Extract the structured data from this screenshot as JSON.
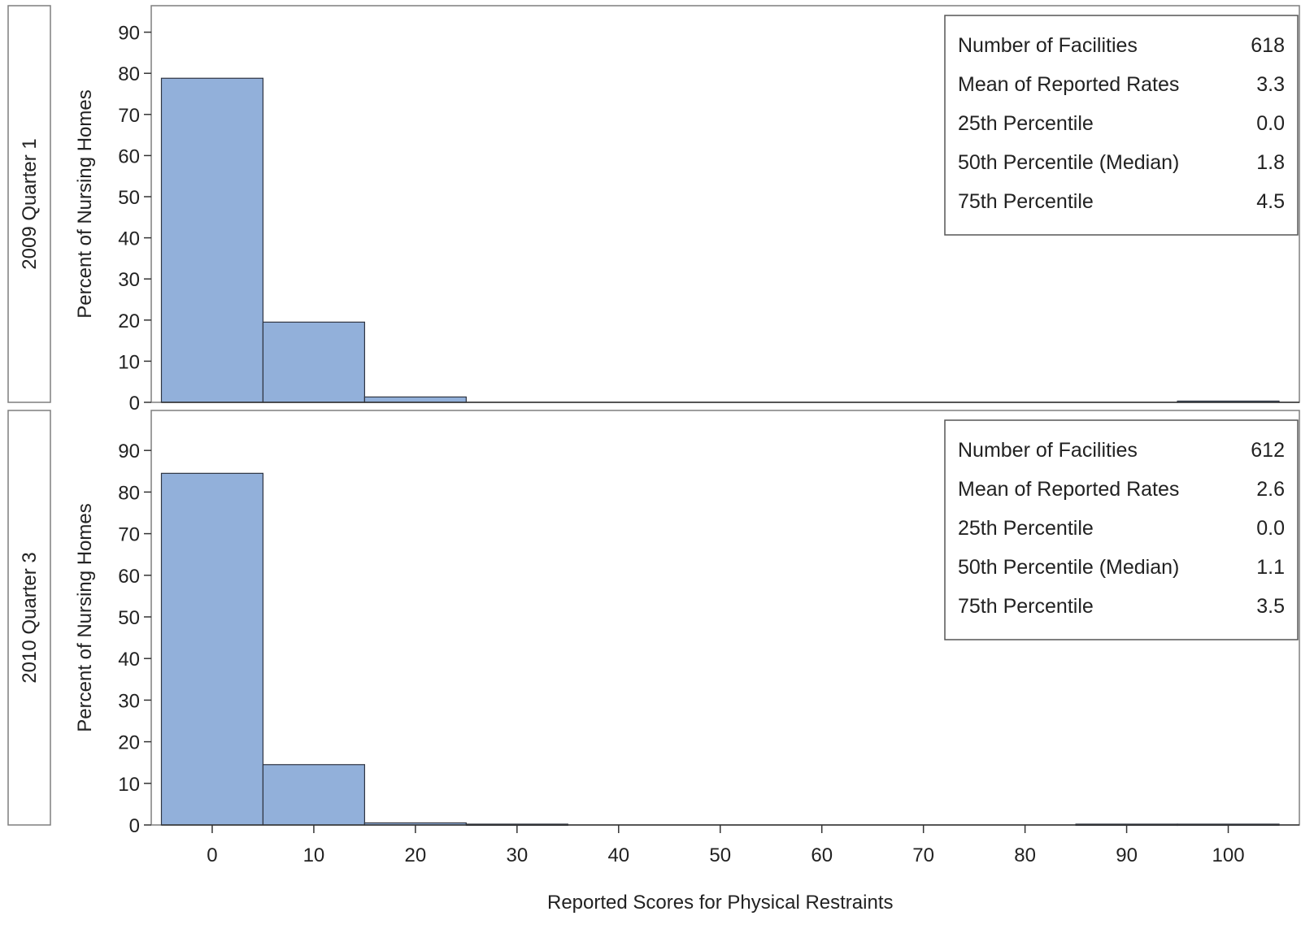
{
  "chart_data": [
    {
      "type": "bar",
      "panel_label": "2009 Quarter 1",
      "ylabel": "Percent of Nursing Homes",
      "xlabel": "",
      "ylim": [
        0,
        95
      ],
      "yticks": [
        0,
        10,
        20,
        30,
        40,
        50,
        60,
        70,
        80,
        90
      ],
      "bin_width": 10,
      "bins": [
        {
          "center": 0,
          "value": 78.8
        },
        {
          "center": 10,
          "value": 19.5
        },
        {
          "center": 20,
          "value": 1.3
        },
        {
          "center": 30,
          "value": 0
        },
        {
          "center": 40,
          "value": 0
        },
        {
          "center": 50,
          "value": 0
        },
        {
          "center": 60,
          "value": 0
        },
        {
          "center": 70,
          "value": 0
        },
        {
          "center": 80,
          "value": 0
        },
        {
          "center": 90,
          "value": 0
        },
        {
          "center": 100,
          "value": 0.3
        }
      ],
      "stats": [
        {
          "label": "Number of Facilities",
          "value": "618"
        },
        {
          "label": "Mean of Reported Rates",
          "value": "3.3"
        },
        {
          "label": "25th Percentile",
          "value": "0.0"
        },
        {
          "label": "50th Percentile (Median)",
          "value": "1.8"
        },
        {
          "label": "75th Percentile",
          "value": "4.5"
        }
      ],
      "legend_position": "top-right",
      "grid": false
    },
    {
      "type": "bar",
      "panel_label": "2010 Quarter 3",
      "ylabel": "Percent of Nursing Homes",
      "xlabel": "Reported Scores for Physical Restraints",
      "xticks": [
        0,
        10,
        20,
        30,
        40,
        50,
        60,
        70,
        80,
        90,
        100
      ],
      "ylim": [
        0,
        95
      ],
      "yticks": [
        0,
        10,
        20,
        30,
        40,
        50,
        60,
        70,
        80,
        90
      ],
      "bin_width": 10,
      "bins": [
        {
          "center": 0,
          "value": 84.5
        },
        {
          "center": 10,
          "value": 14.5
        },
        {
          "center": 20,
          "value": 0.5
        },
        {
          "center": 30,
          "value": 0.2
        },
        {
          "center": 40,
          "value": 0
        },
        {
          "center": 50,
          "value": 0
        },
        {
          "center": 60,
          "value": 0
        },
        {
          "center": 70,
          "value": 0
        },
        {
          "center": 80,
          "value": 0
        },
        {
          "center": 90,
          "value": 0.2
        },
        {
          "center": 100,
          "value": 0.2
        }
      ],
      "stats": [
        {
          "label": "Number of Facilities",
          "value": "612"
        },
        {
          "label": "Mean of Reported Rates",
          "value": "2.6"
        },
        {
          "label": "25th Percentile",
          "value": "0.0"
        },
        {
          "label": "50th Percentile (Median)",
          "value": "1.1"
        },
        {
          "label": "75th Percentile",
          "value": "3.5"
        }
      ],
      "legend_position": "top-right",
      "grid": false
    }
  ],
  "colors": {
    "bar_fill": "#92b0da",
    "bar_stroke": "#2f3542",
    "frame": "#7f7f7f"
  }
}
